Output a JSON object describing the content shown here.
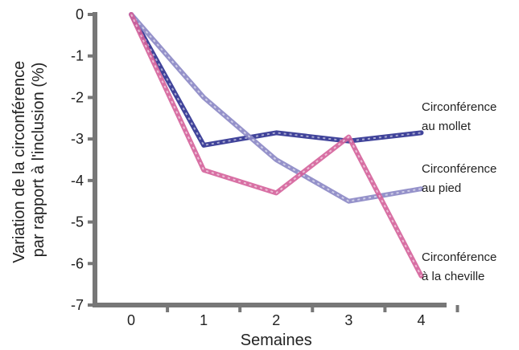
{
  "chart_data": {
    "type": "line",
    "title": "",
    "xlabel": "Semaines",
    "ylabel": [
      "Variation de la circonférence",
      "par rapport à l'inclusion (%)"
    ],
    "x": [
      0,
      1,
      2,
      3,
      4
    ],
    "xlim": [
      -0.5,
      4.35
    ],
    "ylim": [
      -7,
      0
    ],
    "x_ticks": [
      "0",
      "1",
      "2",
      "3",
      "4"
    ],
    "y_ticks": [
      "0",
      "-1",
      "-2",
      "-3",
      "-4",
      "-5",
      "-6",
      "-7"
    ],
    "grid": false,
    "legend": "inline labels at line ends (right)",
    "series": [
      {
        "name": "Circonférence au mollet",
        "label_lines": [
          "Circonférence",
          "au mollet"
        ],
        "values": [
          0,
          -3.15,
          -2.85,
          -3.05,
          -2.85
        ],
        "color": "#2b2f8f"
      },
      {
        "name": "Circonférence au pied",
        "label_lines": [
          "Circonférence",
          "au pied"
        ],
        "values": [
          0,
          -2.0,
          -3.5,
          -4.5,
          -4.2
        ],
        "color": "#8a86c4"
      },
      {
        "name": "Circonférence à la cheville",
        "label_lines": [
          "Circonférence",
          "à la cheville"
        ],
        "values": [
          0,
          -3.75,
          -4.3,
          -2.95,
          -6.3
        ],
        "color": "#d4619a"
      }
    ]
  }
}
